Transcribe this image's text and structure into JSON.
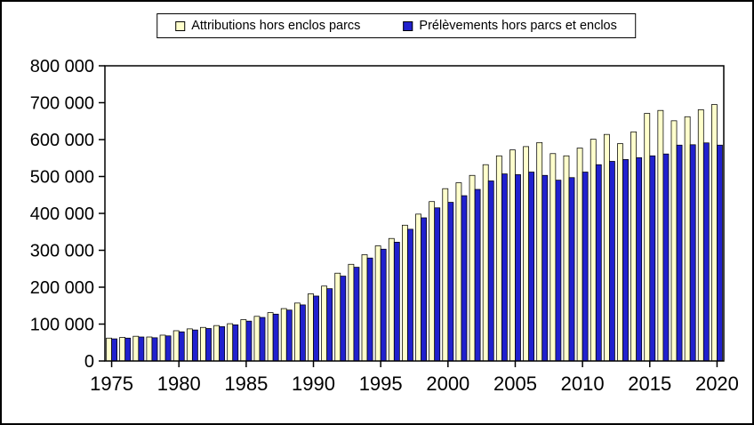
{
  "chart_data": {
    "type": "bar",
    "title": "",
    "xlabel": "",
    "ylabel": "",
    "ylim": [
      0,
      800000
    ],
    "ytick_interval": 100000,
    "ytick_labels": [
      "0",
      "100 000",
      "200 000",
      "300 000",
      "400 000",
      "500 000",
      "600 000",
      "700 000",
      "800 000"
    ],
    "grid": false,
    "legend_position": "top",
    "x": [
      1975,
      1976,
      1977,
      1978,
      1979,
      1980,
      1981,
      1982,
      1983,
      1984,
      1985,
      1986,
      1987,
      1988,
      1989,
      1990,
      1991,
      1992,
      1993,
      1994,
      1995,
      1996,
      1997,
      1998,
      1999,
      2000,
      2001,
      2002,
      2003,
      2004,
      2005,
      2006,
      2007,
      2008,
      2009,
      2010,
      2011,
      2012,
      2013,
      2014,
      2015,
      2016,
      2017,
      2018,
      2019,
      2020
    ],
    "xticks": [
      1975,
      1980,
      1985,
      1990,
      1995,
      2000,
      2005,
      2010,
      2015,
      2020
    ],
    "series": [
      {
        "name": "Attributions hors enclos parcs",
        "color": "#FFFFCC",
        "values": [
          62000,
          64000,
          67000,
          65000,
          70000,
          82000,
          87000,
          91000,
          96000,
          101000,
          112000,
          121000,
          131000,
          142000,
          157000,
          182000,
          203000,
          238000,
          262000,
          288000,
          312000,
          332000,
          368000,
          398000,
          432000,
          467000,
          483000,
          503000,
          532000,
          556000,
          572000,
          581000,
          592000,
          562000,
          556000,
          577000,
          601000,
          614000,
          589000,
          621000,
          671000,
          679000,
          651000,
          662000,
          681000,
          695000
        ]
      },
      {
        "name": "Prélèvements hors parcs et enclos",
        "color": "#2121CE",
        "values": [
          60000,
          62000,
          65000,
          63000,
          68000,
          79000,
          84000,
          88000,
          93000,
          98000,
          108000,
          118000,
          127000,
          138000,
          152000,
          176000,
          196000,
          230000,
          254000,
          279000,
          303000,
          322000,
          357000,
          388000,
          415000,
          430000,
          448000,
          465000,
          488000,
          507000,
          505000,
          512000,
          503000,
          490000,
          497000,
          512000,
          532000,
          541000,
          546000,
          551000,
          556000,
          561000,
          585000,
          586000,
          591000,
          585000
        ]
      }
    ]
  }
}
